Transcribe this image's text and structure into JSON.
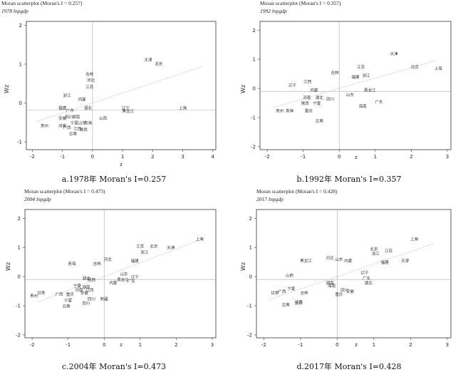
{
  "chart_data": [
    {
      "type": "scatter",
      "title": "Moran scatterplot (Moran's I = 0.257)",
      "subtitle": "1978 lnpgdp",
      "xlabel": "z",
      "ylabel": "Wz",
      "xlim": [
        -2.2,
        4.1
      ],
      "ylim": [
        -1.2,
        2.1
      ],
      "xticks": [
        -2,
        -1,
        0,
        1,
        2,
        3,
        4
      ],
      "yticks": [
        -1,
        0,
        1,
        2
      ],
      "fit_slope": 0.257,
      "caption": "a.1978年 Moran's I=0.257",
      "points": [
        {
          "label": "天津",
          "x": 1.85,
          "y": 1.12
        },
        {
          "label": "北京",
          "x": 2.2,
          "y": 1.02
        },
        {
          "label": "吉林",
          "x": -0.1,
          "y": 0.75
        },
        {
          "label": "河北",
          "x": -0.05,
          "y": 0.6
        },
        {
          "label": "江苏",
          "x": -0.1,
          "y": 0.42
        },
        {
          "label": "浙江",
          "x": -0.85,
          "y": 0.2
        },
        {
          "label": "内蒙",
          "x": -0.35,
          "y": 0.1
        },
        {
          "label": "福建",
          "x": -1.0,
          "y": -0.12
        },
        {
          "label": "湖北",
          "x": -0.15,
          "y": -0.12
        },
        {
          "label": "广东",
          "x": -0.75,
          "y": -0.18
        },
        {
          "label": "辽宁",
          "x": 1.1,
          "y": -0.12
        },
        {
          "label": "黑龙江",
          "x": 1.18,
          "y": -0.2
        },
        {
          "label": "上海",
          "x": 3.0,
          "y": -0.12
        },
        {
          "label": "湖南",
          "x": -0.55,
          "y": -0.35
        },
        {
          "label": "四川",
          "x": -0.78,
          "y": -0.35
        },
        {
          "label": "安徽",
          "x": -1.0,
          "y": -0.38
        },
        {
          "label": "山西",
          "x": 0.35,
          "y": -0.38
        },
        {
          "label": "宁夏",
          "x": -0.6,
          "y": -0.5
        },
        {
          "label": "山东",
          "x": -0.35,
          "y": -0.5
        },
        {
          "label": "青海",
          "x": -0.15,
          "y": -0.5
        },
        {
          "label": "贵州",
          "x": -1.6,
          "y": -0.58
        },
        {
          "label": "河南",
          "x": -1.0,
          "y": -0.58
        },
        {
          "label": "广西",
          "x": -0.85,
          "y": -0.62
        },
        {
          "label": "江西",
          "x": -0.5,
          "y": -0.65
        },
        {
          "label": "陕西",
          "x": -0.3,
          "y": -0.68
        },
        {
          "label": "云南",
          "x": -0.65,
          "y": -0.78
        }
      ]
    },
    {
      "type": "scatter",
      "title": "Moran scatterplot (Moran's I = 0.357)",
      "subtitle": "1992 lnpgdp",
      "xlabel": "z",
      "ylabel": "Wz",
      "xlim": [
        -2.2,
        3.1
      ],
      "ylim": [
        -2.1,
        2.3
      ],
      "xticks": [
        -2,
        -1,
        0,
        1,
        2,
        3
      ],
      "yticks": [
        -2,
        -1,
        0,
        1,
        2
      ],
      "fit_slope": 0.357,
      "caption": "b.1992年 Moran's I=0.357",
      "points": [
        {
          "label": "天津",
          "x": 1.52,
          "y": 1.2
        },
        {
          "label": "北京",
          "x": 2.1,
          "y": 0.75
        },
        {
          "label": "上海",
          "x": 2.75,
          "y": 0.7
        },
        {
          "label": "江苏",
          "x": 0.6,
          "y": 0.75
        },
        {
          "label": "吉林",
          "x": -0.12,
          "y": 0.55
        },
        {
          "label": "福建",
          "x": 0.45,
          "y": 0.4
        },
        {
          "label": "浙江",
          "x": 0.75,
          "y": 0.45
        },
        {
          "label": "辽宁",
          "x": -1.3,
          "y": 0.12
        },
        {
          "label": "江西",
          "x": -0.88,
          "y": 0.25
        },
        {
          "label": "内蒙",
          "x": -0.7,
          "y": -0.05
        },
        {
          "label": "黑龙江",
          "x": 0.85,
          "y": -0.05
        },
        {
          "label": "山东",
          "x": 0.3,
          "y": -0.2
        },
        {
          "label": "河南",
          "x": -0.9,
          "y": -0.3
        },
        {
          "label": "湖北",
          "x": -0.55,
          "y": -0.3
        },
        {
          "label": "四川",
          "x": -0.25,
          "y": -0.35
        },
        {
          "label": "广东",
          "x": 1.1,
          "y": -0.45
        },
        {
          "label": "陕西",
          "x": -0.95,
          "y": -0.5
        },
        {
          "label": "宁夏",
          "x": -0.62,
          "y": -0.5
        },
        {
          "label": "海南",
          "x": 0.65,
          "y": -0.6
        },
        {
          "label": "贵州",
          "x": -1.65,
          "y": -0.75
        },
        {
          "label": "青海",
          "x": -1.38,
          "y": -0.75
        },
        {
          "label": "重庆",
          "x": -0.85,
          "y": -0.75
        },
        {
          "label": "云南",
          "x": -0.55,
          "y": -1.1
        }
      ]
    },
    {
      "type": "scatter",
      "title": "Moran scatterplot (Moran's I = 0.473)",
      "subtitle": "2004 lnpgdp",
      "xlabel": "z",
      "ylabel": "Wz",
      "xlim": [
        -2.2,
        3.1
      ],
      "ylim": [
        -2.1,
        2.3
      ],
      "xticks": [
        -2,
        -1,
        0,
        1,
        2,
        3
      ],
      "yticks": [
        -2,
        -1,
        0,
        1,
        2
      ],
      "fit_slope": 0.473,
      "caption": "c.2004年 Moran's I=0.473",
      "points": [
        {
          "label": "上海",
          "x": 2.65,
          "y": 1.3
        },
        {
          "label": "天津",
          "x": 1.85,
          "y": 1.0
        },
        {
          "label": "北京",
          "x": 1.38,
          "y": 1.05
        },
        {
          "label": "江苏",
          "x": 1.0,
          "y": 1.05
        },
        {
          "label": "浙江",
          "x": 1.12,
          "y": 0.85
        },
        {
          "label": "福建",
          "x": 0.85,
          "y": 0.55
        },
        {
          "label": "吉林",
          "x": -0.2,
          "y": 0.45
        },
        {
          "label": "河北",
          "x": 0.1,
          "y": 0.6
        },
        {
          "label": "青海",
          "x": -0.9,
          "y": 0.45
        },
        {
          "label": "山东",
          "x": 0.55,
          "y": 0.1
        },
        {
          "label": "辽宁",
          "x": 0.85,
          "y": 0.0
        },
        {
          "label": "黑龙江",
          "x": 0.52,
          "y": -0.1
        },
        {
          "label": "内蒙",
          "x": 0.25,
          "y": -0.2
        },
        {
          "label": "广东",
          "x": 0.75,
          "y": -0.15
        },
        {
          "label": "湖北",
          "x": -0.5,
          "y": -0.05
        },
        {
          "label": "陕西",
          "x": -0.35,
          "y": -0.1
        },
        {
          "label": "宁夏",
          "x": -0.75,
          "y": -0.3
        },
        {
          "label": "湖南",
          "x": -0.5,
          "y": -0.35
        },
        {
          "label": "江西",
          "x": -0.4,
          "y": -0.45
        },
        {
          "label": "河南",
          "x": -0.7,
          "y": -0.45
        },
        {
          "label": "安徽",
          "x": -0.55,
          "y": -0.55
        },
        {
          "label": "甘肃",
          "x": -1.75,
          "y": -0.55
        },
        {
          "label": "广西",
          "x": -1.25,
          "y": -0.6
        },
        {
          "label": "重庆",
          "x": -0.95,
          "y": -0.6
        },
        {
          "label": "贵州",
          "x": -1.95,
          "y": -0.65
        },
        {
          "label": "四川",
          "x": -0.35,
          "y": -0.75
        },
        {
          "label": "新疆",
          "x": 0.0,
          "y": -0.75
        },
        {
          "label": "宁夏",
          "x": -1.0,
          "y": -0.8
        },
        {
          "label": "云南",
          "x": -1.05,
          "y": -1.0
        },
        {
          "label": "四川",
          "x": -0.5,
          "y": -0.9
        }
      ]
    },
    {
      "type": "scatter",
      "title": "Moran scatterplot (Moran's I = 0.428)",
      "subtitle": "2017 lnpgdp",
      "xlabel": "z",
      "ylabel": "Wz",
      "xlim": [
        -2.2,
        3.1
      ],
      "ylim": [
        -2.1,
        2.3
      ],
      "xticks": [
        -2,
        -1,
        0,
        1,
        2,
        3
      ],
      "yticks": [
        -2,
        -1,
        0,
        1,
        2
      ],
      "fit_slope": 0.428,
      "caption": "d.2017年 Moran's I=0.428",
      "points": [
        {
          "label": "上海",
          "x": 2.1,
          "y": 1.3
        },
        {
          "label": "北京",
          "x": 1.0,
          "y": 0.95
        },
        {
          "label": "天津",
          "x": 1.85,
          "y": 0.55
        },
        {
          "label": "江苏",
          "x": 1.4,
          "y": 0.9
        },
        {
          "label": "浙江",
          "x": 1.05,
          "y": 0.8
        },
        {
          "label": "福建",
          "x": 1.3,
          "y": 0.5
        },
        {
          "label": "山东",
          "x": 0.05,
          "y": 0.6
        },
        {
          "label": "内蒙",
          "x": 0.3,
          "y": 0.55
        },
        {
          "label": "河北",
          "x": -0.2,
          "y": 0.65
        },
        {
          "label": "黑龙江",
          "x": -0.85,
          "y": 0.55
        },
        {
          "label": "辽宁",
          "x": 0.75,
          "y": 0.15
        },
        {
          "label": "广东",
          "x": 0.8,
          "y": -0.05
        },
        {
          "label": "山西",
          "x": -1.3,
          "y": 0.05
        },
        {
          "label": "湖北",
          "x": 0.85,
          "y": -0.2
        },
        {
          "label": "湖南",
          "x": -0.2,
          "y": -0.2
        },
        {
          "label": "海南",
          "x": -0.15,
          "y": -0.3
        },
        {
          "label": "四川",
          "x": 0.2,
          "y": -0.45
        },
        {
          "label": "安徽",
          "x": 0.35,
          "y": -0.5
        },
        {
          "label": "重庆",
          "x": 0.05,
          "y": -0.6
        },
        {
          "label": "宁夏",
          "x": -1.25,
          "y": -0.4
        },
        {
          "label": "甘肃",
          "x": -1.7,
          "y": -0.55
        },
        {
          "label": "广西",
          "x": -1.5,
          "y": -0.5
        },
        {
          "label": "吉林",
          "x": -0.9,
          "y": -0.55
        },
        {
          "label": "江西",
          "x": -1.05,
          "y": -0.85
        },
        {
          "label": "云南",
          "x": -1.4,
          "y": -0.95
        },
        {
          "label": "贵州",
          "x": -1.05,
          "y": -0.9
        }
      ]
    }
  ]
}
